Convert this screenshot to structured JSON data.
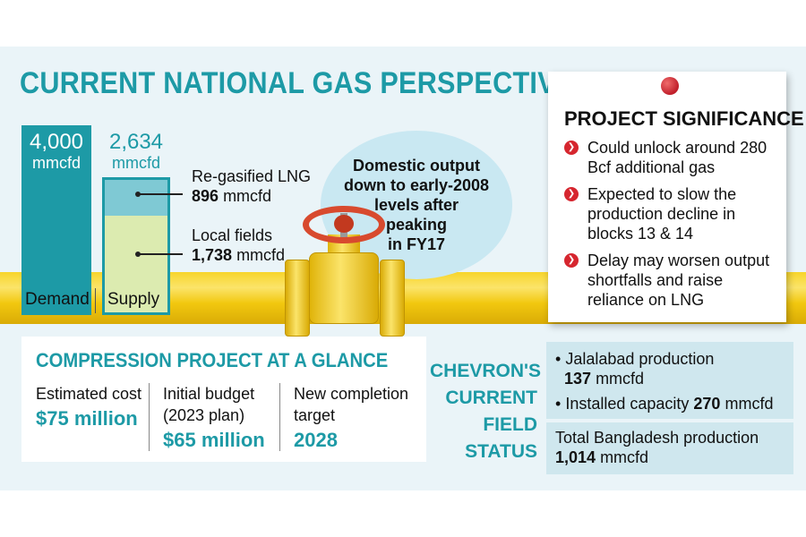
{
  "title": "CURRENT NATIONAL GAS PERSPECTIVE",
  "demand": {
    "value": "4,000",
    "unit": "mmcfd",
    "label": "Demand",
    "color": "#1d9aa6"
  },
  "supply": {
    "value": "2,634",
    "unit": "mmcfd",
    "label": "Supply",
    "segments": [
      {
        "label": "Re-gasified LNG",
        "value": "896",
        "unit": "mmcfd",
        "color": "#7fc9d4"
      },
      {
        "label": "Local fields",
        "value": "1,738",
        "unit": "mmcfd",
        "color": "#dcebb0"
      }
    ]
  },
  "bubble_note": [
    "Domestic output",
    "down to early-2008",
    "levels after",
    "peaking",
    "in FY17"
  ],
  "project_significance": {
    "title": "PROJECT SIGNIFICANCE",
    "items": [
      "Could unlock around 280 Bcf additional gas",
      "Expected to slow the production decline in blocks 13 & 14",
      "Delay may worsen output shortfalls and raise reliance on LNG"
    ],
    "bullet_color": "#d6262f"
  },
  "compression": {
    "title": "COMPRESSION PROJECT AT A GLANCE",
    "columns": [
      {
        "label": "Estimated cost",
        "value": "$75 million"
      },
      {
        "label": "Initial budget (2023 plan)",
        "value": "$65 million"
      },
      {
        "label": "New completion target",
        "value": "2028"
      }
    ]
  },
  "chevron": {
    "title": [
      "CHEVRON'S",
      "CURRENT",
      "FIELD",
      "STATUS"
    ],
    "jalalabad_label": "Jalalabad production",
    "jalalabad_value": "137",
    "jalalabad_unit": "mmcfd",
    "capacity_label": "Installed capacity",
    "capacity_value": "270",
    "capacity_unit": "mmcfd",
    "total_label": "Total Bangladesh production",
    "total_value": "1,014",
    "total_unit": "mmcfd"
  },
  "colors": {
    "accent": "#1d9aa6",
    "pipe": "#f7d52b",
    "valve_wheel": "#d84a2e",
    "panel_bg": "#eaf4f8"
  }
}
